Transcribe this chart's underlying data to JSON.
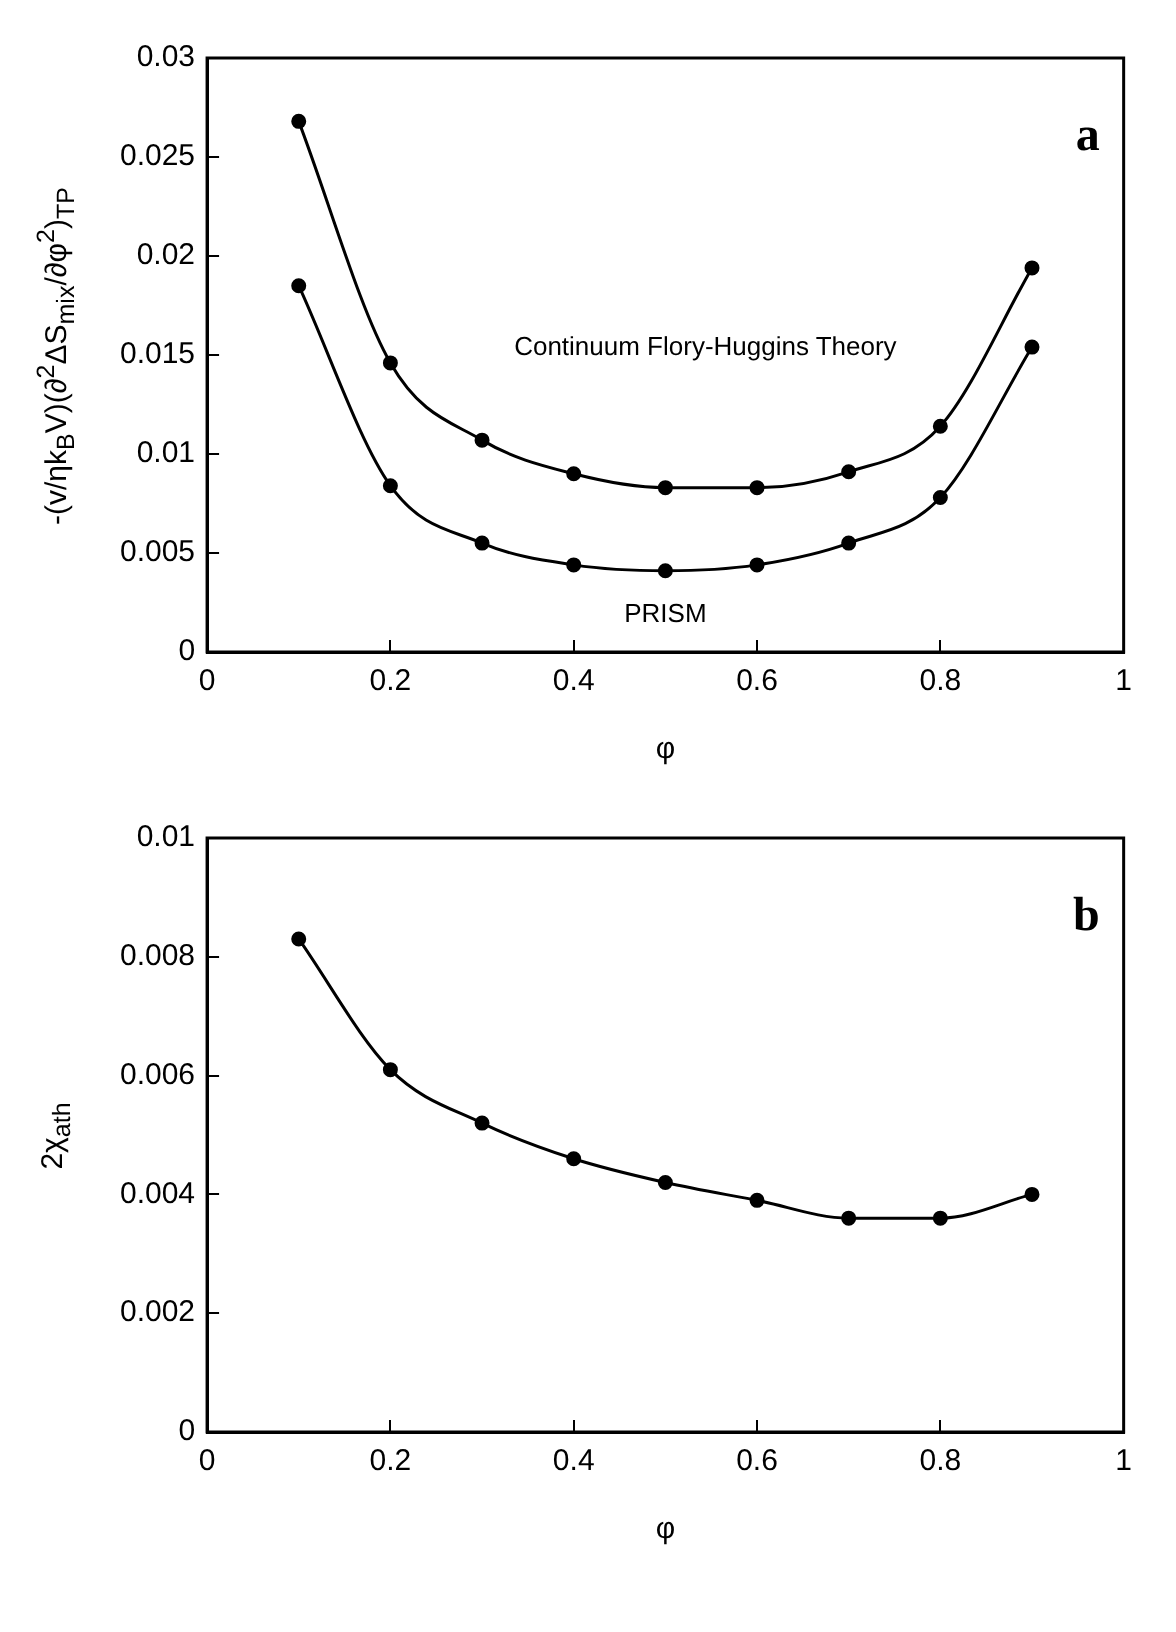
{
  "chart_data": [
    {
      "type": "line",
      "ylabel": "-(v/ηk$_{B}$V)(∂$^{2}$ΔS$_{mix}$/∂φ$^{2}$)$_{TP}$",
      "xlabel": "φ",
      "x": [
        0.1,
        0.2,
        0.3,
        0.4,
        0.5,
        0.6,
        0.7,
        0.8,
        0.9
      ],
      "series": [
        {
          "name": "Continuum Flory-Huggins Theory",
          "color": "#000000",
          "values": [
            0.0268,
            0.0146,
            0.0107,
            0.009,
            0.0083,
            0.0083,
            0.0091,
            0.0114,
            0.0194
          ]
        },
        {
          "name": "PRISM",
          "color": "#000000",
          "values": [
            0.0185,
            0.0084,
            0.0055,
            0.0044,
            0.0041,
            0.0044,
            0.0055,
            0.0078,
            0.0154
          ]
        }
      ],
      "xlim": [
        0,
        1
      ],
      "xticks": [
        0,
        0.2,
        0.4,
        0.6,
        0.8,
        1
      ],
      "ylim": [
        0,
        0.03
      ],
      "yticks": [
        0,
        0.005,
        0.01,
        0.015,
        0.02,
        0.025,
        0.03
      ],
      "marker": "circle",
      "line_style": "solid",
      "grid": false,
      "legend": false,
      "annotations": [
        "a"
      ]
    },
    {
      "type": "line",
      "ylabel": "2χ$_{ath}$",
      "xlabel": "φ",
      "x": [
        0.1,
        0.2,
        0.3,
        0.4,
        0.5,
        0.6,
        0.7,
        0.8,
        0.9
      ],
      "series": [
        {
          "color": "#000000",
          "values": [
            0.0083,
            0.0061,
            0.0052,
            0.0046,
            0.0042,
            0.0039,
            0.0036,
            0.0036,
            0.004
          ]
        }
      ],
      "xlim": [
        0,
        1
      ],
      "xticks": [
        0,
        0.2,
        0.4,
        0.6,
        0.8,
        1
      ],
      "ylim": [
        0,
        0.01
      ],
      "yticks": [
        0,
        0.002,
        0.004,
        0.006,
        0.008,
        0.01
      ],
      "marker": "circle",
      "line_style": "solid",
      "grid": false,
      "legend": false,
      "annotations": [
        "b"
      ]
    }
  ]
}
